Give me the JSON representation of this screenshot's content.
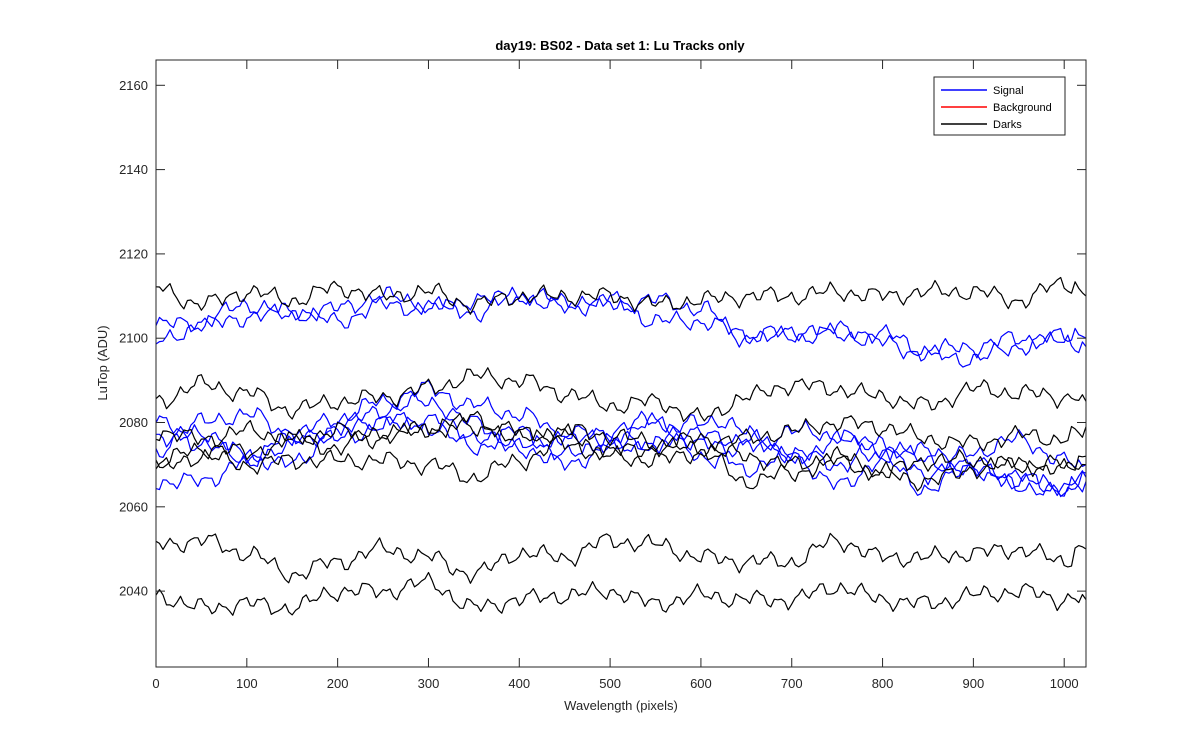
{
  "chart_data": {
    "type": "line",
    "title": "day19: BS02 - Data set 1: Lu Tracks only",
    "xlabel": "Wavelength (pixels)",
    "ylabel": "LuTop (ADU)",
    "xlim": [
      0,
      1024
    ],
    "ylim": [
      2022,
      2166
    ],
    "x_ticks": [
      0,
      100,
      200,
      300,
      400,
      500,
      600,
      700,
      800,
      900,
      1000
    ],
    "y_ticks": [
      2040,
      2060,
      2080,
      2100,
      2120,
      2140,
      2160
    ],
    "grid": false,
    "legend_position": "top-right",
    "legend": [
      {
        "label": "Signal",
        "color": "#0000ff"
      },
      {
        "label": "Background",
        "color": "#ff0000"
      },
      {
        "label": "Darks",
        "color": "#000000"
      }
    ],
    "x": [
      0,
      50,
      100,
      150,
      200,
      250,
      300,
      350,
      400,
      450,
      500,
      550,
      600,
      650,
      700,
      750,
      800,
      850,
      900,
      950,
      1000,
      1024
    ],
    "series": [
      {
        "group": "Signal",
        "color": "#0000ff",
        "values": [
          2103,
          2104,
          2108,
          2106,
          2107,
          2110,
          2108,
          2106,
          2110,
          2107,
          2109,
          2104,
          2104,
          2101,
          2100,
          2102,
          2101,
          2097,
          2098,
          2100,
          2099,
          2098
        ]
      },
      {
        "group": "Signal",
        "color": "#0000ff",
        "values": [
          2099,
          2103,
          2105,
          2106,
          2104,
          2108,
          2107,
          2109,
          2110,
          2109,
          2108,
          2109,
          2107,
          2100,
          2102,
          2101,
          2099,
          2096,
          2095,
          2098,
          2101,
          2100
        ]
      },
      {
        "group": "Signal",
        "color": "#0000ff",
        "values": [
          2076,
          2080,
          2082,
          2077,
          2081,
          2085,
          2088,
          2084,
          2082,
          2077,
          2075,
          2080,
          2077,
          2076,
          2073,
          2070,
          2075,
          2073,
          2070,
          2066,
          2065,
          2067
        ]
      },
      {
        "group": "Signal",
        "color": "#0000ff",
        "values": [
          2066,
          2066,
          2071,
          2075,
          2079,
          2083,
          2085,
          2080,
          2074,
          2077,
          2078,
          2081,
          2071,
          2074,
          2078,
          2077,
          2074,
          2071,
          2068,
          2067,
          2064,
          2066
        ]
      },
      {
        "group": "Signal",
        "color": "#0000ff",
        "values": [
          2073,
          2078,
          2072,
          2070,
          2078,
          2081,
          2079,
          2074,
          2078,
          2072,
          2076,
          2075,
          2081,
          2078,
          2071,
          2076,
          2072,
          2068,
          2073,
          2076,
          2071,
          2070
        ]
      },
      {
        "group": "Signal",
        "color": "#0000ff",
        "values": [
          2080,
          2075,
          2071,
          2077,
          2076,
          2079,
          2081,
          2077,
          2074,
          2070,
          2074,
          2075,
          2076,
          2069,
          2072,
          2065,
          2071,
          2064,
          2070,
          2065,
          2063,
          2068
        ]
      },
      {
        "group": "Darks",
        "color": "#000000",
        "values": [
          2112,
          2108,
          2111,
          2109,
          2112,
          2110,
          2111,
          2108,
          2110,
          2110,
          2110,
          2108,
          2109,
          2110,
          2110,
          2111,
          2110,
          2111,
          2111,
          2109,
          2113,
          2110
        ]
      },
      {
        "group": "Darks",
        "color": "#000000",
        "values": [
          2085,
          2089,
          2087,
          2083,
          2085,
          2086,
          2088,
          2091,
          2090,
          2087,
          2084,
          2085,
          2081,
          2086,
          2089,
          2088,
          2086,
          2084,
          2088,
          2087,
          2086,
          2085
        ]
      },
      {
        "group": "Darks",
        "color": "#000000",
        "values": [
          2078,
          2076,
          2078,
          2076,
          2074,
          2078,
          2078,
          2081,
          2076,
          2078,
          2077,
          2075,
          2076,
          2076,
          2078,
          2080,
          2079,
          2076,
          2075,
          2077,
          2076,
          2079
        ]
      },
      {
        "group": "Darks",
        "color": "#000000",
        "values": [
          2070,
          2074,
          2073,
          2076,
          2078,
          2076,
          2079,
          2079,
          2078,
          2077,
          2073,
          2074,
          2074,
          2072,
          2070,
          2072,
          2068,
          2071,
          2071,
          2070,
          2069,
          2072
        ]
      },
      {
        "group": "Darks",
        "color": "#000000",
        "values": [
          2069,
          2072,
          2070,
          2071,
          2071,
          2071,
          2070,
          2067,
          2071,
          2075,
          2072,
          2071,
          2073,
          2066,
          2068,
          2071,
          2068,
          2066,
          2069,
          2070,
          2070,
          2070
        ]
      },
      {
        "group": "Darks",
        "color": "#000000",
        "values": [
          2051,
          2052,
          2049,
          2044,
          2047,
          2050,
          2048,
          2044,
          2049,
          2048,
          2052,
          2051,
          2048,
          2047,
          2047,
          2052,
          2048,
          2048,
          2049,
          2050,
          2047,
          2050
        ]
      },
      {
        "group": "Darks",
        "color": "#000000",
        "values": [
          2039,
          2036,
          2037,
          2036,
          2040,
          2040,
          2042,
          2036,
          2038,
          2039,
          2040,
          2037,
          2039,
          2038,
          2038,
          2041,
          2038,
          2037,
          2039,
          2040,
          2038,
          2038
        ]
      }
    ]
  }
}
